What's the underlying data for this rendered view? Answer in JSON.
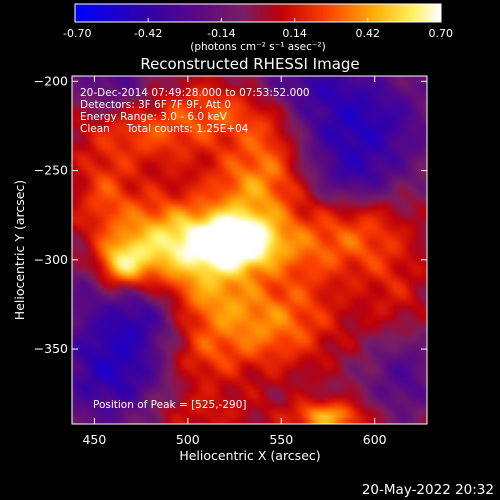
{
  "chart_data": {
    "type": "heatmap",
    "title": "Reconstructed RHESSI Image",
    "xlabel": "Heliocentric X (arcsec)",
    "ylabel": "Heliocentric Y (arcsec)",
    "xlim": [
      438,
      628
    ],
    "ylim": [
      -392,
      -197
    ],
    "xticks": [
      450,
      500,
      550,
      600
    ],
    "yticks": [
      -200,
      -250,
      -300,
      -350
    ],
    "colorbar": {
      "range": [
        -0.7,
        0.7
      ],
      "ticks": [
        "-0.70",
        "-0.42",
        "-0.14",
        "0.14",
        "0.42",
        "0.70"
      ],
      "unit_label": "(photons cm⁻² s⁻¹ asec⁻²)"
    },
    "annotations": [
      "20-Dec-2014 07:49:28.000 to 07:53:52.000",
      "Detectors: 3F 6F 7F 9F, Att 0",
      "Energy Range: 3.0 - 6.0 keV",
      "Clean     Total counts: 1.25E+04"
    ],
    "peak_label": "Position of Peak = [525,-290]",
    "peak": [
      525,
      -290
    ],
    "blobs": [
      {
        "x": 525,
        "y": -290,
        "sx": 14,
        "sy": 10,
        "v": 0.72
      },
      {
        "x": 500,
        "y": -292,
        "sx": 22,
        "sy": 14,
        "v": 0.38
      },
      {
        "x": 465,
        "y": -303,
        "sx": 10,
        "sy": 9,
        "v": 0.42
      },
      {
        "x": 478,
        "y": -285,
        "sx": 24,
        "sy": 18,
        "v": 0.26
      },
      {
        "x": 535,
        "y": -262,
        "sx": 18,
        "sy": 16,
        "v": 0.34
      },
      {
        "x": 545,
        "y": -235,
        "sx": 14,
        "sy": 16,
        "v": 0.26
      },
      {
        "x": 520,
        "y": -215,
        "sx": 20,
        "sy": 12,
        "v": 0.22
      },
      {
        "x": 478,
        "y": -228,
        "sx": 26,
        "sy": 14,
        "v": 0.26
      },
      {
        "x": 560,
        "y": -292,
        "sx": 22,
        "sy": 14,
        "v": 0.26
      },
      {
        "x": 595,
        "y": -285,
        "sx": 16,
        "sy": 16,
        "v": 0.2
      },
      {
        "x": 512,
        "y": -320,
        "sx": 18,
        "sy": 14,
        "v": 0.3
      },
      {
        "x": 535,
        "y": -340,
        "sx": 20,
        "sy": 16,
        "v": 0.26
      },
      {
        "x": 505,
        "y": -355,
        "sx": 14,
        "sy": 12,
        "v": 0.2
      },
      {
        "x": 560,
        "y": -330,
        "sx": 18,
        "sy": 18,
        "v": 0.18
      },
      {
        "x": 575,
        "y": -388,
        "sx": 14,
        "sy": 6,
        "v": 0.45
      },
      {
        "x": 500,
        "y": -385,
        "sx": 24,
        "sy": 10,
        "v": 0.16
      },
      {
        "x": 610,
        "y": -320,
        "sx": 12,
        "sy": 20,
        "v": 0.14
      },
      {
        "x": 455,
        "y": -260,
        "sx": 10,
        "sy": 14,
        "v": 0.18
      }
    ],
    "dips": [
      {
        "x": 460,
        "y": -360,
        "sx": 22,
        "sy": 26,
        "v": 0.48
      },
      {
        "x": 590,
        "y": -225,
        "sx": 28,
        "sy": 22,
        "v": 0.48
      },
      {
        "x": 460,
        "y": -200,
        "sx": 16,
        "sy": 14,
        "v": 0.28
      },
      {
        "x": 560,
        "y": -200,
        "sx": 22,
        "sy": 10,
        "v": 0.22
      },
      {
        "x": 475,
        "y": -330,
        "sx": 14,
        "sy": 12,
        "v": 0.22
      },
      {
        "x": 615,
        "y": -365,
        "sx": 14,
        "sy": 18,
        "v": 0.28
      },
      {
        "x": 590,
        "y": -255,
        "sx": 14,
        "sy": 10,
        "v": 0.2
      },
      {
        "x": 445,
        "y": -310,
        "sx": 8,
        "sy": 14,
        "v": 0.15
      }
    ],
    "background": 0.0
  },
  "footer_date": "20-May-2022 20:32"
}
